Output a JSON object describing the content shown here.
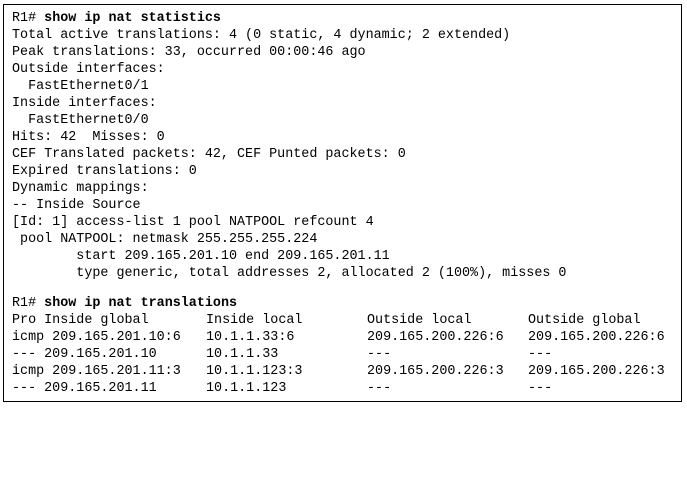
{
  "statistics": {
    "prompt": "R1#",
    "command": "show ip nat statistics",
    "lines": [
      "Total active translations: 4 (0 static, 4 dynamic; 2 extended)",
      "Peak translations: 33, occurred 00:00:46 ago",
      "Outside interfaces:",
      "  FastEthernet0/1",
      "Inside interfaces:",
      "  FastEthernet0/0",
      "Hits: 42  Misses: 0",
      "CEF Translated packets: 42, CEF Punted packets: 0",
      "Expired translations: 0",
      "Dynamic mappings:",
      "-- Inside Source",
      "[Id: 1] access-list 1 pool NATPOOL refcount 4",
      " pool NATPOOL: netmask 255.255.255.224",
      "        start 209.165.201.10 end 209.165.201.11",
      "        type generic, total addresses 2, allocated 2 (100%), misses 0"
    ]
  },
  "translations": {
    "prompt": "R1#",
    "command": "show ip nat translations",
    "header": {
      "c1": "Pro Inside global",
      "c2": "Inside local",
      "c3": "Outside local",
      "c4": "Outside global"
    },
    "rows": [
      {
        "c1": "icmp 209.165.201.10:6",
        "c2": "10.1.1.33:6",
        "c3": "209.165.200.226:6",
        "c4": "209.165.200.226:6"
      },
      {
        "c1": "--- 209.165.201.10",
        "c2": "10.1.1.33",
        "c3": "---",
        "c4": "---"
      },
      {
        "c1": "icmp 209.165.201.11:3",
        "c2": "10.1.1.123:3",
        "c3": "209.165.200.226:3",
        "c4": "209.165.200.226:3"
      },
      {
        "c1": "--- 209.165.201.11",
        "c2": "10.1.1.123",
        "c3": "---",
        "c4": "---"
      }
    ]
  }
}
